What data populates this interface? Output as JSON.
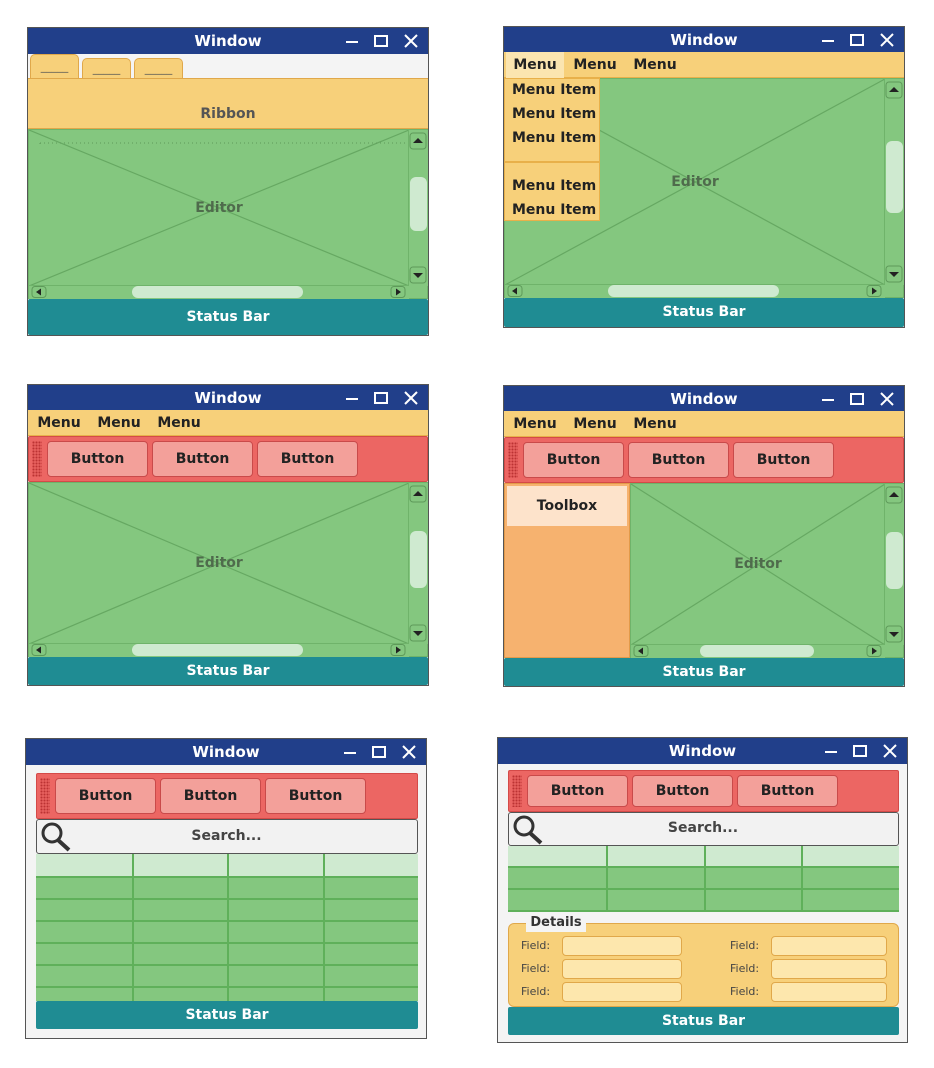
{
  "windows": [
    {
      "title": "Window",
      "tabs": [
        "_____",
        "_____",
        "_____"
      ],
      "ribbon": "Ribbon",
      "editor": "Editor",
      "status": "Status Bar"
    },
    {
      "title": "Window",
      "menus": [
        "Menu",
        "Menu",
        "Menu"
      ],
      "menu_items": [
        "Menu Item",
        "Menu Item",
        "Menu Item",
        "Menu Item",
        "Menu Item"
      ],
      "editor": "Editor",
      "status": "Status Bar"
    },
    {
      "title": "Window",
      "menus": [
        "Menu",
        "Menu",
        "Menu"
      ],
      "buttons": [
        "Button",
        "Button",
        "Button"
      ],
      "editor": "Editor",
      "status": "Status Bar"
    },
    {
      "title": "Window",
      "menus": [
        "Menu",
        "Menu",
        "Menu"
      ],
      "buttons": [
        "Button",
        "Button",
        "Button"
      ],
      "toolbox": "Toolbox",
      "editor": "Editor",
      "status": "Status Bar"
    },
    {
      "title": "Window",
      "buttons": [
        "Button",
        "Button",
        "Button"
      ],
      "search": "Search...",
      "status": "Status Bar"
    },
    {
      "title": "Window",
      "buttons": [
        "Button",
        "Button",
        "Button"
      ],
      "search": "Search...",
      "details": {
        "title": "Details",
        "fields": [
          "Field:",
          "Field:",
          "Field:",
          "Field:",
          "Field:",
          "Field:"
        ]
      },
      "status": "Status Bar"
    }
  ]
}
